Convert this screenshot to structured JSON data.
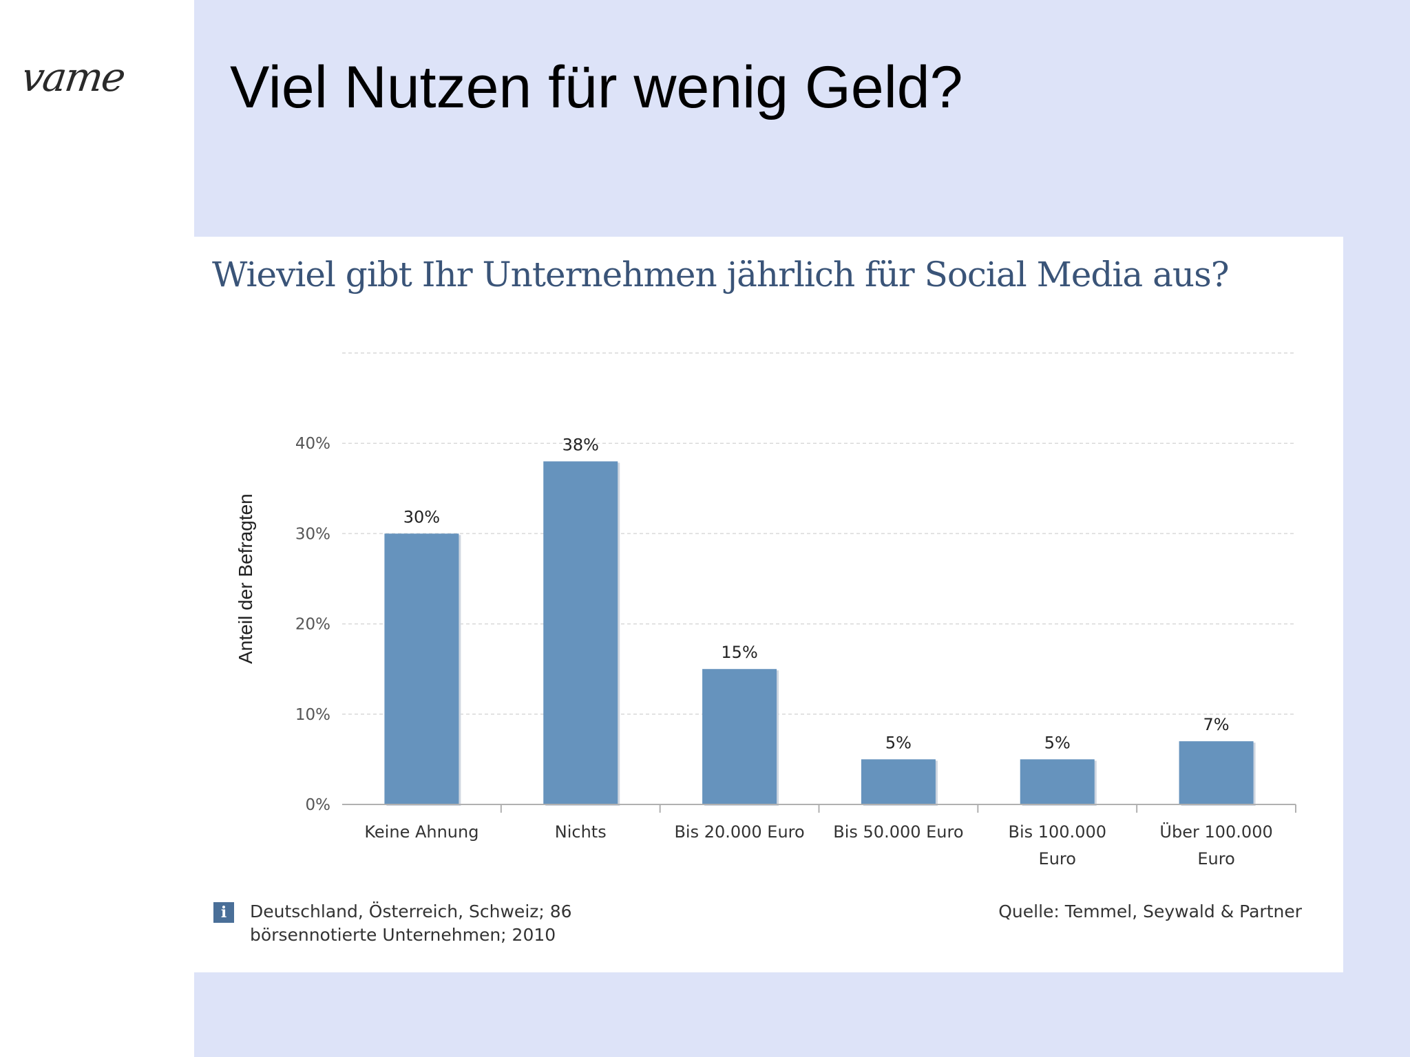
{
  "logo_text": "vame",
  "slide_title": "Viel Nutzen für wenig Geld?",
  "chart_data": {
    "type": "bar",
    "title": "Wieviel gibt Ihr Unternehmen jährlich für Social Media aus?",
    "xlabel": "",
    "ylabel": "Anteil der Befragten",
    "categories": [
      [
        "Keine Ahnung"
      ],
      [
        "Nichts"
      ],
      [
        "Bis 20.000 Euro"
      ],
      [
        "Bis 50.000 Euro"
      ],
      [
        "Bis 100.000",
        "Euro"
      ],
      [
        "Über 100.000",
        "Euro"
      ]
    ],
    "values": [
      30,
      38,
      15,
      5,
      5,
      7
    ],
    "value_labels": [
      "30%",
      "38%",
      "15%",
      "5%",
      "5%",
      "7%"
    ],
    "yticks": [
      0,
      10,
      20,
      30,
      40
    ],
    "ytick_labels": [
      "0%",
      "10%",
      "20%",
      "30%",
      "40%"
    ],
    "ylim": [
      0,
      50
    ],
    "grid": true,
    "bar_color": "#6693bd"
  },
  "footnote": "Deutschland, Österreich, Schweiz; 86 börsennotierte Unternehmen; 2010",
  "info_icon": "i",
  "source": "Quelle: Temmel, Seywald & Partner"
}
